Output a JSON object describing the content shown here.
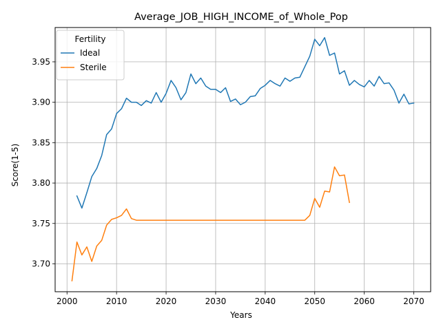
{
  "chart_data": {
    "type": "line",
    "title": "Average_JOB_HIGH_INCOME_of_Whole_Pop",
    "xlabel": "Years",
    "ylabel": "Score(1-5)",
    "xlim": [
      1997.6,
      2073.4
    ],
    "ylim": [
      3.6655,
      3.9925
    ],
    "xticks": [
      2000,
      2010,
      2020,
      2030,
      2040,
      2050,
      2060,
      2070
    ],
    "yticks": [
      3.7,
      3.75,
      3.8,
      3.85,
      3.9,
      3.95
    ],
    "xtick_labels": [
      "2000",
      "2010",
      "2020",
      "2030",
      "2040",
      "2050",
      "2060",
      "2070"
    ],
    "ytick_labels": [
      "3.70",
      "3.75",
      "3.80",
      "3.85",
      "3.90",
      "3.95"
    ],
    "grid": true,
    "legend": {
      "title": "Fertility",
      "placement": "top-left"
    },
    "series": [
      {
        "name": "Ideal",
        "color": "#1f77b4",
        "x": [
          2002,
          2003,
          2004,
          2005,
          2006,
          2007,
          2008,
          2009,
          2010,
          2011,
          2012,
          2013,
          2014,
          2015,
          2016,
          2017,
          2018,
          2019,
          2020,
          2021,
          2022,
          2023,
          2024,
          2025,
          2026,
          2027,
          2028,
          2029,
          2030,
          2031,
          2032,
          2033,
          2034,
          2035,
          2036,
          2037,
          2038,
          2039,
          2040,
          2041,
          2042,
          2043,
          2044,
          2045,
          2046,
          2047,
          2048,
          2049,
          2050,
          2051,
          2052,
          2053,
          2054,
          2055,
          2056,
          2057,
          2058,
          2059,
          2060,
          2061,
          2062,
          2063,
          2064,
          2065,
          2066,
          2067,
          2068,
          2069,
          2070
        ],
        "y": [
          3.784,
          3.769,
          3.788,
          3.808,
          3.818,
          3.834,
          3.86,
          3.867,
          3.886,
          3.892,
          3.905,
          3.9,
          3.9,
          3.896,
          3.902,
          3.899,
          3.912,
          3.9,
          3.911,
          3.927,
          3.918,
          3.903,
          3.912,
          3.935,
          3.923,
          3.93,
          3.92,
          3.916,
          3.916,
          3.912,
          3.918,
          3.901,
          3.904,
          3.897,
          3.9,
          3.907,
          3.908,
          3.917,
          3.921,
          3.927,
          3.923,
          3.92,
          3.93,
          3.926,
          3.93,
          3.931,
          3.944,
          3.957,
          3.978,
          3.97,
          3.98,
          3.958,
          3.961,
          3.935,
          3.939,
          3.921,
          3.927,
          3.922,
          3.919,
          3.927,
          3.92,
          3.932,
          3.923,
          3.924,
          3.915,
          3.899,
          3.91,
          3.898,
          3.899
        ]
      },
      {
        "name": "Sterile",
        "color": "#ff7f0e",
        "x": [
          2001,
          2002,
          2003,
          2004,
          2005,
          2006,
          2007,
          2008,
          2009,
          2010,
          2011,
          2012,
          2013,
          2014,
          2015,
          2016,
          2017,
          2018,
          2019,
          2020,
          2021,
          2022,
          2023,
          2024,
          2025,
          2026,
          2027,
          2028,
          2029,
          2030,
          2031,
          2032,
          2033,
          2034,
          2035,
          2036,
          2037,
          2038,
          2039,
          2040,
          2041,
          2042,
          2043,
          2044,
          2045,
          2046,
          2047,
          2048,
          2049,
          2050,
          2051,
          2052,
          2053,
          2054,
          2055,
          2056,
          2057
        ],
        "y": [
          3.679,
          3.727,
          3.711,
          3.721,
          3.703,
          3.722,
          3.729,
          3.748,
          3.755,
          3.757,
          3.76,
          3.768,
          3.756,
          3.754,
          3.754,
          3.754,
          3.754,
          3.754,
          3.754,
          3.754,
          3.754,
          3.754,
          3.754,
          3.754,
          3.754,
          3.754,
          3.754,
          3.754,
          3.754,
          3.754,
          3.754,
          3.754,
          3.754,
          3.754,
          3.754,
          3.754,
          3.754,
          3.754,
          3.754,
          3.754,
          3.754,
          3.754,
          3.754,
          3.754,
          3.754,
          3.754,
          3.754,
          3.754,
          3.76,
          3.781,
          3.77,
          3.79,
          3.789,
          3.82,
          3.809,
          3.81,
          3.776
        ]
      }
    ]
  }
}
